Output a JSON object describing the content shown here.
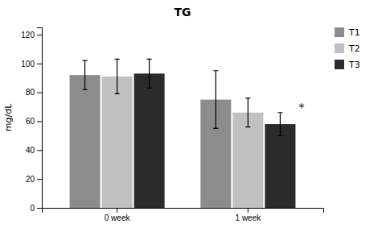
{
  "chart_data": {
    "type": "bar",
    "title": "TG",
    "ylabel": "mg/dL",
    "categories": [
      "0 week",
      "1 week"
    ],
    "series": [
      {
        "name": "T1",
        "color": "#8c8c8c",
        "values": [
          92,
          75
        ],
        "errors": [
          10,
          20
        ]
      },
      {
        "name": "T2",
        "color": "#c0c0c0",
        "values": [
          91,
          66
        ],
        "errors": [
          12,
          10
        ]
      },
      {
        "name": "T3",
        "color": "#2b2b2b",
        "values": [
          93,
          58
        ],
        "errors": [
          10,
          8
        ]
      }
    ],
    "ylim": [
      0,
      125
    ],
    "yticks": [
      0,
      20,
      40,
      60,
      80,
      100,
      120
    ],
    "grid": false,
    "legend": "right",
    "annotations": [
      {
        "text": "*",
        "category": "1 week",
        "series": "T3"
      }
    ]
  }
}
